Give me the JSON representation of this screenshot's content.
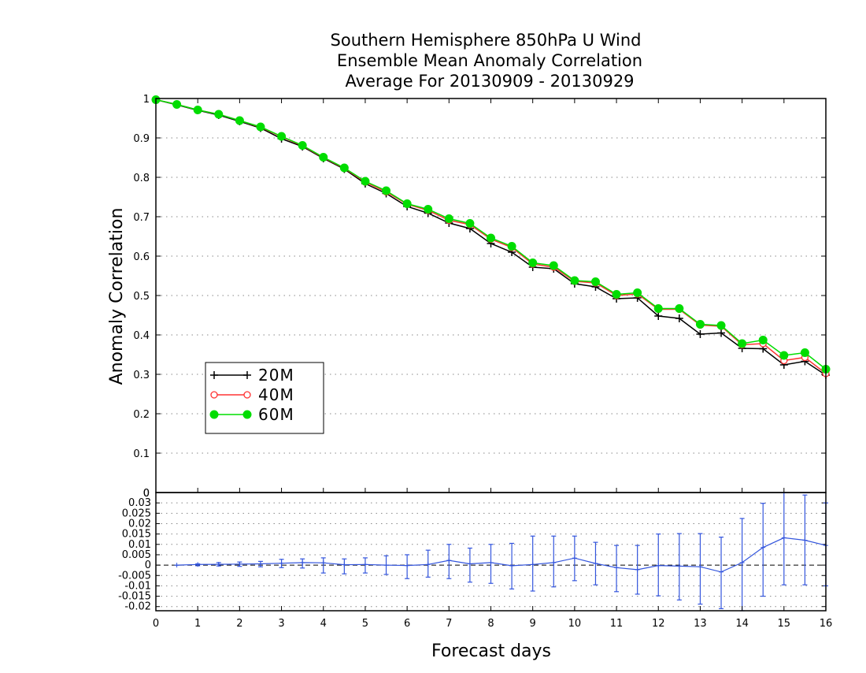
{
  "title_lines": [
    "Southern Hemisphere 850hPa U Wind",
    "Ensemble Mean Anomaly Correlation",
    "Average For 20130909 - 20130929"
  ],
  "chart_data": [
    {
      "type": "line",
      "title": "Southern Hemisphere 850hPa U Wind Ensemble Mean Anomaly Correlation Average For 20130909 - 20130929",
      "xlabel": "",
      "ylabel": "Anomaly Correlation",
      "xlim": [
        0,
        16
      ],
      "ylim": [
        0,
        1
      ],
      "yticks": [
        "0",
        "0.1",
        "0.2",
        "0.3",
        "0.4",
        "0.5",
        "0.6",
        "0.7",
        "0.8",
        "0.9",
        "1"
      ],
      "grid": true,
      "legend_position": "center-left",
      "x": [
        0,
        0.5,
        1,
        1.5,
        2,
        2.5,
        3,
        3.5,
        4,
        4.5,
        5,
        5.5,
        6,
        6.5,
        7,
        7.5,
        8,
        8.5,
        9,
        9.5,
        10,
        10.5,
        11,
        11.5,
        12,
        12.5,
        13,
        13.5,
        14,
        14.5,
        15,
        15.5,
        16
      ],
      "series": [
        {
          "name": "20M",
          "color": "#000000",
          "marker": "plus",
          "values": [
            0.997,
            0.984,
            0.97,
            0.958,
            0.942,
            0.925,
            0.898,
            0.878,
            0.848,
            0.821,
            0.784,
            0.759,
            0.726,
            0.709,
            0.684,
            0.67,
            0.632,
            0.61,
            0.572,
            0.568,
            0.53,
            0.522,
            0.492,
            0.494,
            0.448,
            0.442,
            0.402,
            0.405,
            0.366,
            0.365,
            0.324,
            0.333,
            0.298
          ]
        },
        {
          "name": "40M",
          "color": "#ff3333",
          "marker": "open-circle",
          "values": [
            0.997,
            0.985,
            0.971,
            0.96,
            0.944,
            0.927,
            0.903,
            0.88,
            0.85,
            0.823,
            0.788,
            0.763,
            0.732,
            0.716,
            0.691,
            0.68,
            0.643,
            0.622,
            0.58,
            0.572,
            0.536,
            0.532,
            0.5,
            0.504,
            0.465,
            0.465,
            0.425,
            0.422,
            0.375,
            0.378,
            0.335,
            0.343,
            0.302
          ]
        },
        {
          "name": "60M",
          "color": "#00dd00",
          "marker": "filled-circle",
          "values": [
            0.997,
            0.985,
            0.971,
            0.96,
            0.944,
            0.928,
            0.904,
            0.881,
            0.851,
            0.824,
            0.79,
            0.766,
            0.733,
            0.719,
            0.695,
            0.683,
            0.646,
            0.625,
            0.583,
            0.576,
            0.538,
            0.535,
            0.503,
            0.507,
            0.467,
            0.467,
            0.427,
            0.424,
            0.378,
            0.387,
            0.348,
            0.355,
            0.313
          ]
        }
      ]
    },
    {
      "type": "line",
      "title": "",
      "xlabel": "Forecast days",
      "ylabel": "",
      "xlim": [
        0,
        16
      ],
      "ylim": [
        -0.022,
        0.035
      ],
      "xticks": [
        "0",
        "1",
        "2",
        "3",
        "4",
        "5",
        "6",
        "7",
        "8",
        "9",
        "10",
        "11",
        "12",
        "13",
        "14",
        "15",
        "16"
      ],
      "yticks": [
        "0.03",
        "0.025",
        "0.02",
        "0.015",
        "0.01",
        "0.005",
        "0",
        "-0.005",
        "-0.01",
        "-0.015",
        "-0.02"
      ],
      "top_tick_label": "0",
      "grid": true,
      "x": [
        0.5,
        1,
        1.5,
        2,
        2.5,
        3,
        3.5,
        4,
        4.5,
        5,
        5.5,
        6,
        6.5,
        7,
        7.5,
        8,
        8.5,
        9,
        9.5,
        10,
        10.5,
        11,
        11.5,
        12,
        12.5,
        13,
        13.5,
        14,
        14.5,
        15,
        15.5,
        16
      ],
      "series": [
        {
          "name": "",
          "color": "#3355dd",
          "values": [
            0.0,
            0.0003,
            0.0004,
            0.0005,
            0.0006,
            0.0009,
            0.0012,
            0.0011,
            0.0002,
            0.0003,
            0.0,
            -0.0002,
            0.0003,
            0.0023,
            0.0006,
            0.0012,
            -0.0003,
            0.0003,
            0.0012,
            0.0034,
            0.0008,
            -0.0012,
            -0.0022,
            -0.0002,
            -0.0005,
            -0.0008,
            -0.0033,
            0.0012,
            0.0085,
            0.0132,
            0.012,
            0.0095
          ],
          "error_low": [
            0.0,
            -0.0003,
            -0.0004,
            -0.0006,
            -0.0008,
            -0.0012,
            -0.0014,
            -0.0038,
            -0.0042,
            -0.0038,
            -0.0045,
            -0.0065,
            -0.0058,
            -0.0065,
            -0.0082,
            -0.0088,
            -0.0115,
            -0.0125,
            -0.0105,
            -0.0075,
            -0.0095,
            -0.0128,
            -0.014,
            -0.0148,
            -0.0168,
            -0.0188,
            -0.021,
            -0.022,
            -0.015,
            -0.0095,
            -0.0095,
            -0.01
          ],
          "error_high": [
            0.0,
            0.0006,
            0.0012,
            0.0015,
            0.0018,
            0.0028,
            0.003,
            0.0035,
            0.003,
            0.0035,
            0.0045,
            0.005,
            0.0072,
            0.01,
            0.0082,
            0.01,
            0.0105,
            0.014,
            0.014,
            0.014,
            0.011,
            0.0095,
            0.0095,
            0.015,
            0.0152,
            0.0152,
            0.0135,
            0.0225,
            0.0298,
            0.035,
            0.0338,
            0.03
          ]
        }
      ]
    }
  ]
}
